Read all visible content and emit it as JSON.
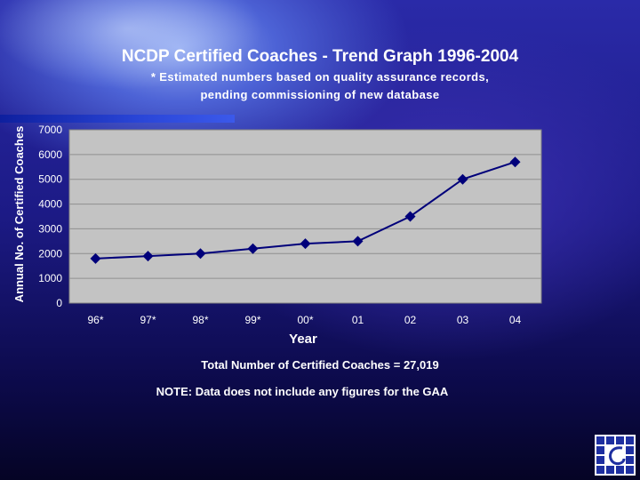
{
  "footer": {
    "total": "Total Number of Certified Coaches = 27,019",
    "note": "NOTE: Data does not include any figures for the GAA"
  },
  "logo": {
    "icon": "grid-logo-icon"
  },
  "colors": {
    "line": "#00007a",
    "plot_bg": "#c3c3c3",
    "grid": "#909090"
  },
  "chart_data": {
    "type": "line",
    "title": "NCDP Certified Coaches - Trend Graph 1996-2004",
    "subtitle": "* Estimated numbers based on quality assurance records, pending commissioning of new database",
    "xlabel": "Year",
    "ylabel": "Annual No. of Certified Coaches",
    "categories": [
      "96*",
      "97*",
      "98*",
      "99*",
      "00*",
      "01",
      "02",
      "03",
      "04"
    ],
    "series": [
      {
        "values": [
          1800,
          1900,
          2000,
          2200,
          2400,
          2500,
          3500,
          5000,
          5700
        ]
      }
    ],
    "ylim": [
      0,
      7000
    ],
    "yticks": [
      0,
      1000,
      2000,
      3000,
      4000,
      5000,
      6000,
      7000
    ],
    "grid": true,
    "legend": "none"
  }
}
